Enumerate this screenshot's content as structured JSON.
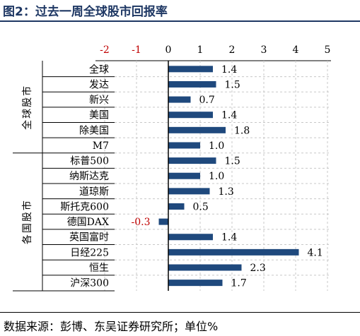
{
  "figure_title": "图2：过去一周全球股市回报率",
  "source_note": "数据来源：彭博、东吴证券研究所；单位%",
  "colors": {
    "bar": "#1f497d",
    "negative_label": "#c00000",
    "grid": "#c8c8c8",
    "title": "#1f3864"
  },
  "chart_data": {
    "type": "bar",
    "orientation": "horizontal",
    "title": "",
    "xlabel": "",
    "ylabel": "",
    "xlim": [
      -2,
      5
    ],
    "x_ticks": [
      "-2",
      "-1",
      "0",
      "1",
      "2",
      "3",
      "4",
      "5"
    ],
    "negative_tick_color": "#c00000",
    "grid": "vertical dashed",
    "groups": [
      {
        "label": "全球股市",
        "categories": [
          "全球",
          "发达",
          "新兴",
          "美国",
          "除美国",
          "M7"
        ]
      },
      {
        "label": "各国股市",
        "categories": [
          "标普500",
          "纳斯达克",
          "道琼斯",
          "斯托克600",
          "德国DAX",
          "英国富时",
          "日经225",
          "恒生",
          "沪深300"
        ]
      }
    ],
    "categories": [
      "全球",
      "发达",
      "新兴",
      "美国",
      "除美国",
      "M7",
      "标普500",
      "纳斯达克",
      "道琼斯",
      "斯托克600",
      "德国DAX",
      "英国富时",
      "日经225",
      "恒生",
      "沪深300"
    ],
    "values": [
      1.4,
      1.5,
      0.7,
      1.4,
      1.8,
      1.0,
      1.5,
      1.0,
      1.3,
      0.5,
      -0.3,
      1.4,
      4.1,
      2.3,
      1.7
    ],
    "value_labels": [
      "1.4",
      "1.5",
      "0.7",
      "1.4",
      "1.8",
      "1.0",
      "1.5",
      "1.0",
      "1.3",
      "0.5",
      "-0.3",
      "1.4",
      "4.1",
      "2.3",
      "1.7"
    ]
  }
}
